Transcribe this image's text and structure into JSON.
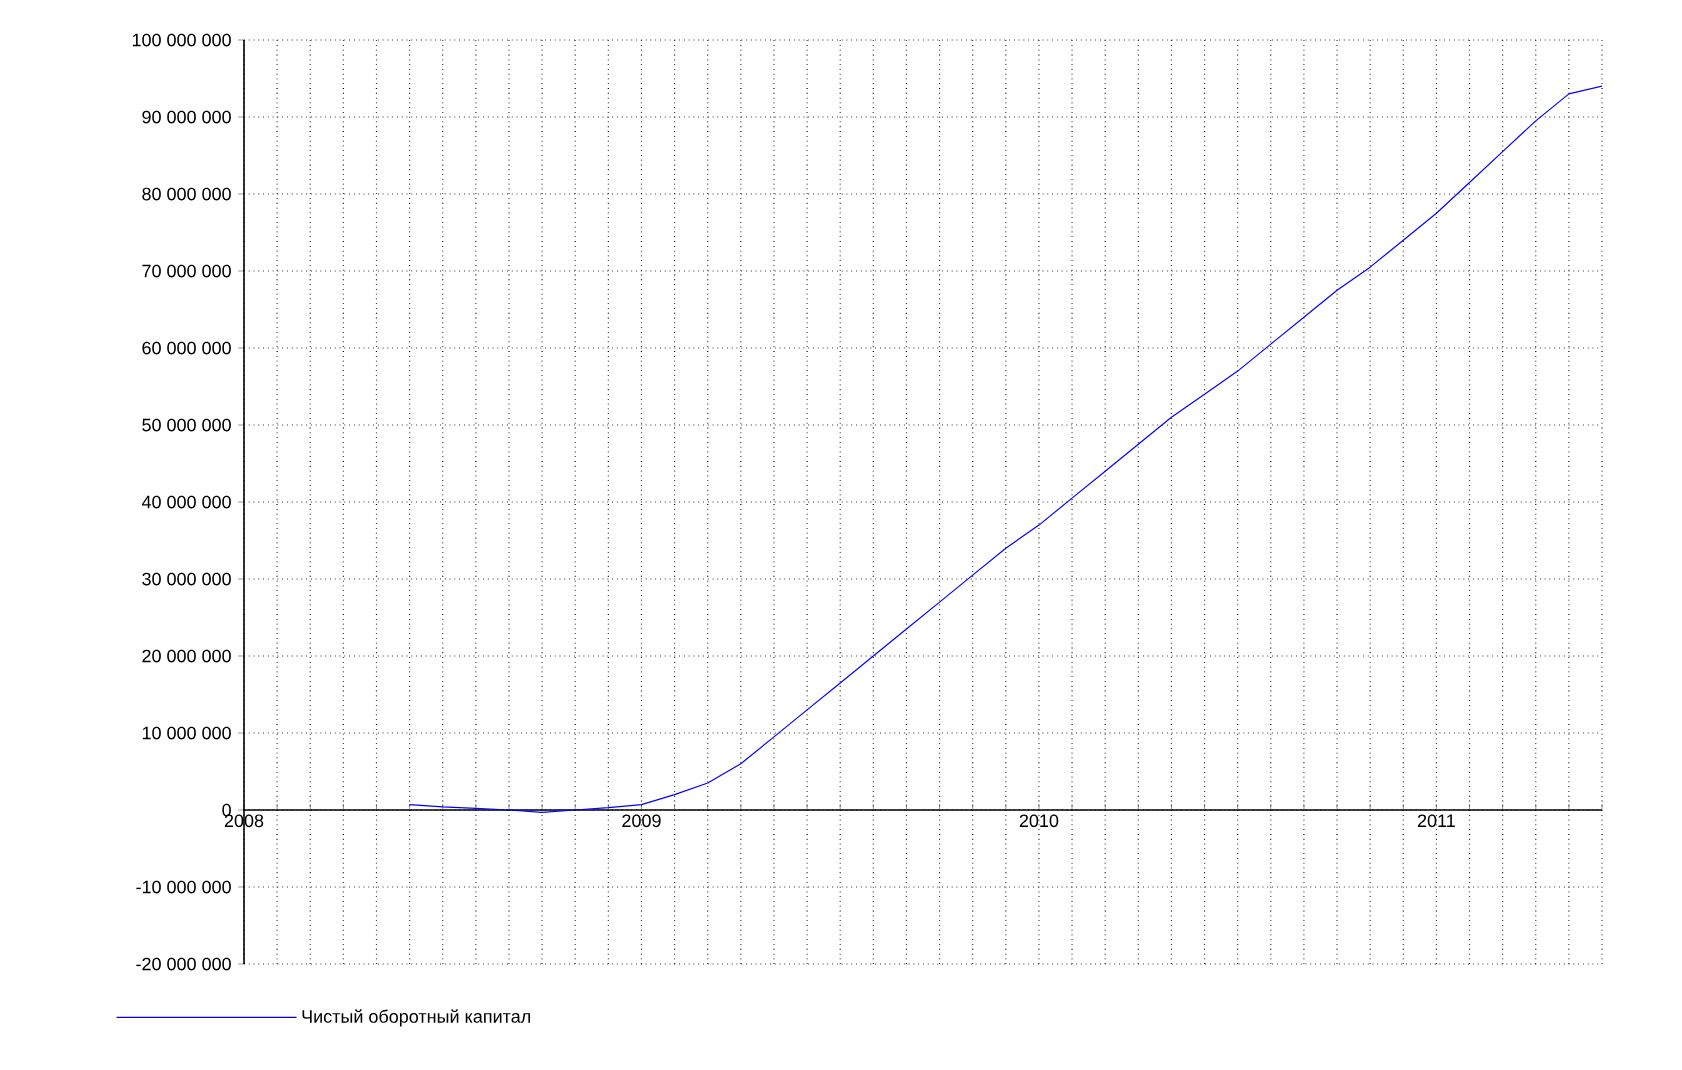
{
  "chart_data": {
    "type": "line",
    "x": [
      "2008-06",
      "2008-07",
      "2008-08",
      "2008-09",
      "2008-10",
      "2008-11",
      "2008-12",
      "2009-01",
      "2009-02",
      "2009-03",
      "2009-04",
      "2009-05",
      "2009-06",
      "2009-07",
      "2009-08",
      "2009-09",
      "2009-10",
      "2009-11",
      "2009-12",
      "2010-01",
      "2010-02",
      "2010-03",
      "2010-04",
      "2010-05",
      "2010-06",
      "2010-07",
      "2010-08",
      "2010-09",
      "2010-10",
      "2010-11",
      "2010-12",
      "2011-01",
      "2011-02",
      "2011-03",
      "2011-04",
      "2011-05",
      "2011-06"
    ],
    "series": [
      {
        "name": "Чистый оборотный капитал",
        "color": "#0000ff",
        "values": [
          700000,
          400000,
          200000,
          0,
          -300000,
          0,
          300000,
          700000,
          2000000,
          3500000,
          6000000,
          9500000,
          13000000,
          16500000,
          20000000,
          23500000,
          27000000,
          30500000,
          34000000,
          37000000,
          40500000,
          44000000,
          47500000,
          51000000,
          54000000,
          57000000,
          60500000,
          64000000,
          67500000,
          70500000,
          74000000,
          77500000,
          81500000,
          85500000,
          89500000,
          93000000,
          94000000
        ]
      }
    ],
    "xlim": [
      "2008-01",
      "2011-06"
    ],
    "xticks": [
      {
        "value": "2008-01",
        "label": "2008"
      },
      {
        "value": "2008-02",
        "label": null
      },
      {
        "value": "2008-03",
        "label": null
      },
      {
        "value": "2008-04",
        "label": null
      },
      {
        "value": "2008-05",
        "label": null
      },
      {
        "value": "2008-06",
        "label": null
      },
      {
        "value": "2008-07",
        "label": null
      },
      {
        "value": "2008-08",
        "label": null
      },
      {
        "value": "2008-09",
        "label": null
      },
      {
        "value": "2008-10",
        "label": null
      },
      {
        "value": "2008-11",
        "label": null
      },
      {
        "value": "2008-12",
        "label": null
      },
      {
        "value": "2009-01",
        "label": "2009"
      },
      {
        "value": "2009-02",
        "label": null
      },
      {
        "value": "2009-03",
        "label": null
      },
      {
        "value": "2009-04",
        "label": null
      },
      {
        "value": "2009-05",
        "label": null
      },
      {
        "value": "2009-06",
        "label": null
      },
      {
        "value": "2009-07",
        "label": null
      },
      {
        "value": "2009-08",
        "label": null
      },
      {
        "value": "2009-09",
        "label": null
      },
      {
        "value": "2009-10",
        "label": null
      },
      {
        "value": "2009-11",
        "label": null
      },
      {
        "value": "2009-12",
        "label": null
      },
      {
        "value": "2010-01",
        "label": "2010"
      },
      {
        "value": "2010-02",
        "label": null
      },
      {
        "value": "2010-03",
        "label": null
      },
      {
        "value": "2010-04",
        "label": null
      },
      {
        "value": "2010-05",
        "label": null
      },
      {
        "value": "2010-06",
        "label": null
      },
      {
        "value": "2010-07",
        "label": null
      },
      {
        "value": "2010-08",
        "label": null
      },
      {
        "value": "2010-09",
        "label": null
      },
      {
        "value": "2010-10",
        "label": null
      },
      {
        "value": "2010-11",
        "label": null
      },
      {
        "value": "2010-12",
        "label": null
      },
      {
        "value": "2011-01",
        "label": "2011"
      },
      {
        "value": "2011-02",
        "label": null
      },
      {
        "value": "2011-03",
        "label": null
      },
      {
        "value": "2011-04",
        "label": null
      },
      {
        "value": "2011-05",
        "label": null
      },
      {
        "value": "2011-06",
        "label": null
      }
    ],
    "ylim": [
      -20000000,
      100000000
    ],
    "yticks": [
      {
        "value": -20000000,
        "label": "-20 000 000"
      },
      {
        "value": -10000000,
        "label": "-10 000 000"
      },
      {
        "value": 0,
        "label": "0"
      },
      {
        "value": 10000000,
        "label": "10 000 000"
      },
      {
        "value": 20000000,
        "label": "20 000 000"
      },
      {
        "value": 30000000,
        "label": "30 000 000"
      },
      {
        "value": 40000000,
        "label": "40 000 000"
      },
      {
        "value": 50000000,
        "label": "50 000 000"
      },
      {
        "value": 60000000,
        "label": "60 000 000"
      },
      {
        "value": 70000000,
        "label": "70 000 000"
      },
      {
        "value": 80000000,
        "label": "80 000 000"
      },
      {
        "value": 90000000,
        "label": "90 000 000"
      },
      {
        "value": 100000000,
        "label": "100 000 000"
      }
    ],
    "grid": true,
    "legend": "bottom left",
    "marker": "none",
    "line_style": "solid"
  }
}
